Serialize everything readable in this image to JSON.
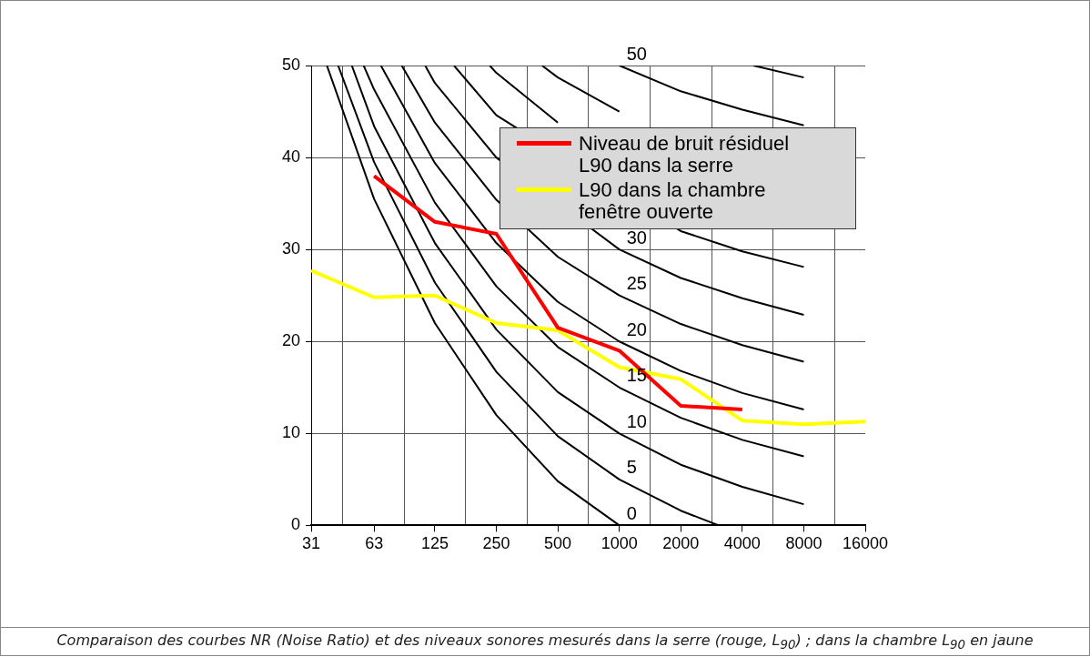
{
  "chart_data": {
    "type": "line",
    "legend": "top right",
    "grid": true,
    "log": "x",
    "xlim": [
      31,
      16000
    ],
    "xticks": [
      31,
      {
        "value": 44,
        "label": null
      },
      63,
      {
        "value": 89,
        "label": null
      },
      125,
      {
        "value": 177,
        "label": null
      },
      250,
      {
        "value": 354,
        "label": null
      },
      500,
      {
        "value": 707,
        "label": null
      },
      1000,
      {
        "value": 1414,
        "label": null
      },
      2000,
      {
        "value": 2828,
        "label": null
      },
      4000,
      {
        "value": 5657,
        "label": null
      },
      8000,
      {
        "value": 11314,
        "label": null
      },
      16000
    ],
    "ylim": [
      0,
      50
    ],
    "yticks": [
      0,
      10,
      20,
      30,
      40,
      50
    ],
    "series": [
      {
        "name": "0",
        "color": "#000000",
        "x": [
          37,
          63,
          125,
          250,
          500,
          1000
        ],
        "values": [
          50,
          35.5,
          22,
          12,
          4.8,
          0
        ]
      },
      {
        "name": "5",
        "color": "#000000",
        "x": [
          42,
          63,
          125,
          250,
          500,
          1000,
          2000,
          3070
        ],
        "values": [
          50,
          39.5,
          26.4,
          16.7,
          9.7,
          5,
          1.6,
          0
        ]
      },
      {
        "name": "10",
        "color": "#000000",
        "x": [
          49,
          63,
          125,
          250,
          500,
          1000,
          2000,
          4000,
          8000
        ],
        "values": [
          50,
          43.4,
          30.7,
          21.3,
          14.5,
          10,
          6.6,
          4.2,
          2.3
        ]
      },
      {
        "name": "15",
        "color": "#000000",
        "x": [
          56,
          63,
          125,
          250,
          500,
          1000,
          2000,
          4000,
          8000
        ],
        "values": [
          50,
          47.4,
          35.1,
          26,
          19.4,
          15,
          11.7,
          9.3,
          7.5
        ]
      },
      {
        "name": "20",
        "color": "#000000",
        "x": [
          68,
          125,
          250,
          500,
          1000,
          2000,
          4000,
          8000
        ],
        "values": [
          50,
          39.4,
          30.7,
          24.3,
          20,
          16.8,
          14.4,
          12.6
        ]
      },
      {
        "name": "25",
        "color": "#000000",
        "x": [
          86,
          125,
          250,
          500,
          1000,
          2000,
          4000,
          8000
        ],
        "values": [
          50,
          43.8,
          35.4,
          29.2,
          25,
          21.9,
          19.6,
          17.8
        ]
      },
      {
        "name": "30",
        "color": "#000000",
        "x": [
          112,
          125,
          250,
          1000,
          2000,
          4000,
          8000
        ],
        "values": [
          50,
          48.1,
          40,
          30,
          26.9,
          24.7,
          22.9
        ]
      },
      {
        "color": "#000000",
        "x": [
          155,
          250,
          2000,
          4000,
          8000
        ],
        "values": [
          50,
          44.6,
          32,
          29.8,
          28.1
        ]
      },
      {
        "color": "#000000",
        "x": [
          232,
          250,
          500
        ],
        "values": [
          50,
          49.2,
          43.8
        ]
      },
      {
        "color": "#000000",
        "x": [
          418,
          500,
          1000
        ],
        "values": [
          50,
          48.7,
          45
        ]
      },
      {
        "name": "50",
        "color": "#000000",
        "x": [
          1000,
          2000,
          4000,
          8000
        ],
        "values": [
          50,
          47.2,
          45.2,
          43.5
        ]
      },
      {
        "color": "#000000",
        "x": [
          4530,
          8000
        ],
        "values": [
          50,
          48.7
        ]
      },
      {
        "name": "Niveau de bruit résiduel L90 dans la serre",
        "color": "#ff0000",
        "x": [
          63,
          125,
          250,
          500,
          1000,
          2000,
          4000
        ],
        "values": [
          38,
          33,
          31.7,
          21.5,
          19,
          13,
          12.6
        ]
      },
      {
        "name": "L90 dans la chambre fenêtre ouverte",
        "color": "#ffff00",
        "x": [
          31,
          63,
          125,
          250,
          500,
          1000,
          2000,
          4000,
          8000,
          16000
        ],
        "values": [
          27.7,
          24.8,
          25,
          22,
          21.2,
          17.2,
          15.9,
          11.4,
          11,
          11.3
        ]
      }
    ],
    "annotations": [
      "Comparaison des courbes NR (Noise Ratio) et des niveaux sonores mesurés dans la serre (rouge, L$_{90}$) ; dans la chambre L$_{90}$ en jaune"
    ]
  }
}
